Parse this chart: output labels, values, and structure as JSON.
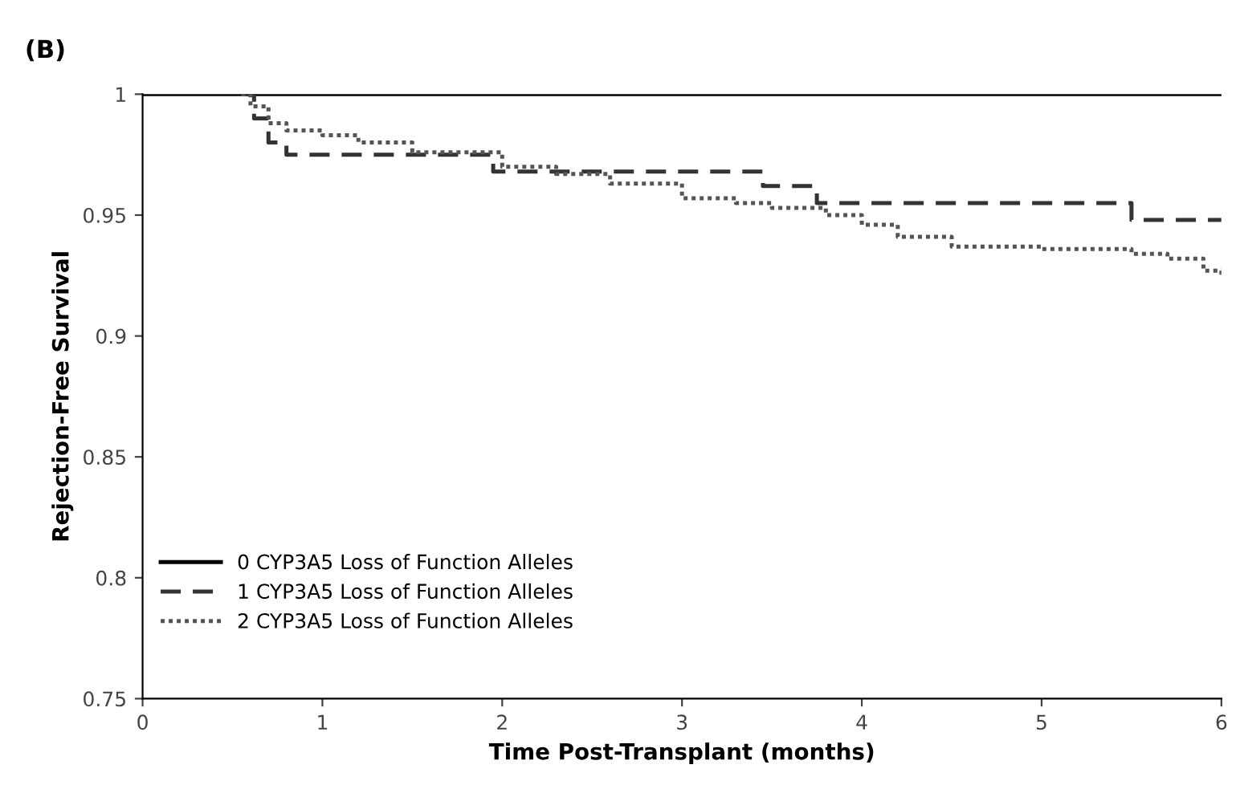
{
  "chart_data": {
    "type": "step",
    "title": "(B)",
    "xlabel": "Time Post-Transplant (months)",
    "ylabel": "Rejection-Free Survival",
    "xlim": [
      0,
      6
    ],
    "ylim": [
      0.75,
      1
    ],
    "xticks": [
      0,
      1,
      2,
      3,
      4,
      5,
      6
    ],
    "yticks": [
      0.75,
      0.8,
      0.85,
      0.9,
      0.95,
      1
    ],
    "grid": false,
    "legend": "bottom left",
    "series": [
      {
        "name": "0 CYP3A5 Loss of Function Alleles",
        "color": "#000000",
        "line_style": "solid",
        "x": [
          0,
          6
        ],
        "values": [
          1,
          1
        ]
      },
      {
        "name": "1 CYP3A5 Loss of Function Alleles",
        "color": "#333333",
        "line_style": "dashed",
        "x": [
          0.55,
          0.62,
          0.7,
          0.8,
          1.95,
          3.45,
          3.75,
          5.5,
          6
        ],
        "values": [
          1,
          0.99,
          0.98,
          0.975,
          0.968,
          0.962,
          0.955,
          0.948,
          0.948
        ]
      },
      {
        "name": "2 CYP3A5 Loss of Function Alleles",
        "color": "#555555",
        "line_style": "dotted",
        "x": [
          0.55,
          0.6,
          0.7,
          0.8,
          1.0,
          1.2,
          1.5,
          2.0,
          2.3,
          2.6,
          3.0,
          3.3,
          3.5,
          3.8,
          4.0,
          4.2,
          4.5,
          5.0,
          5.5,
          5.7,
          5.9,
          6
        ],
        "values": [
          1,
          0.995,
          0.988,
          0.985,
          0.983,
          0.98,
          0.976,
          0.97,
          0.967,
          0.963,
          0.957,
          0.955,
          0.953,
          0.95,
          0.946,
          0.941,
          0.937,
          0.936,
          0.934,
          0.932,
          0.927,
          0.925
        ]
      }
    ]
  }
}
